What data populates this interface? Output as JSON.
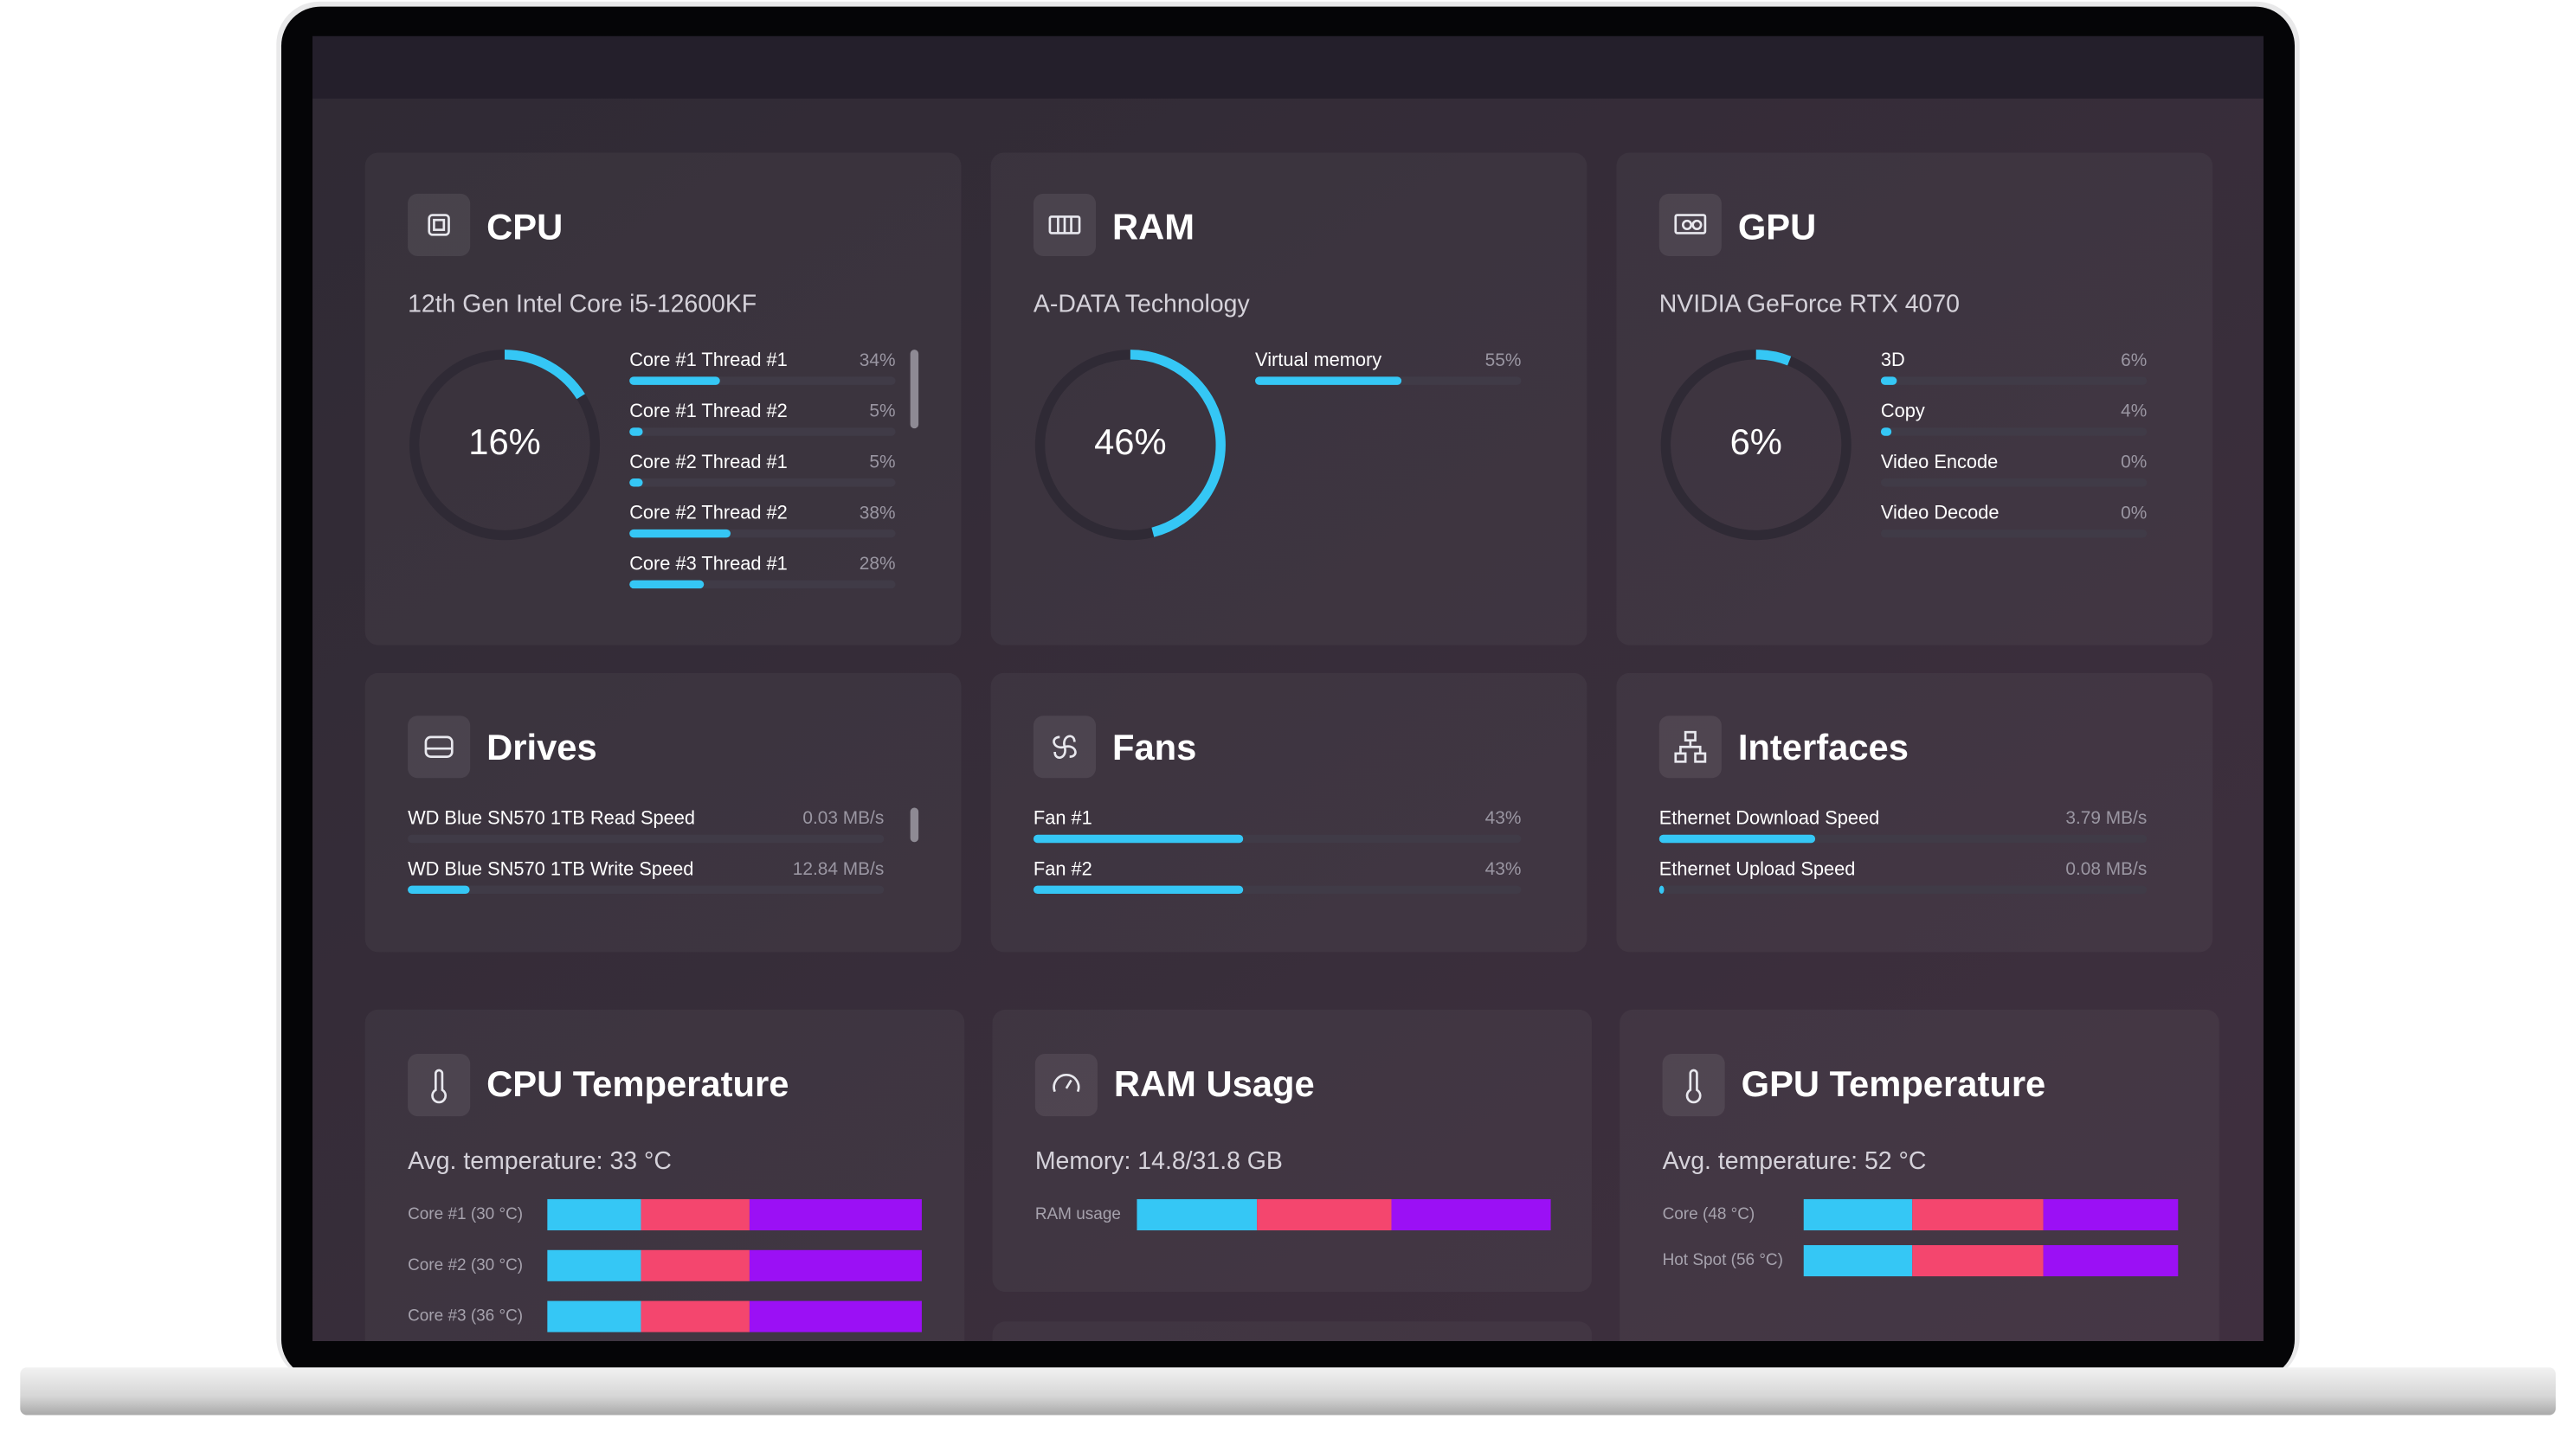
{
  "cpu": {
    "title": "CPU",
    "subtitle": "12th Gen Intel Core i5-12600KF",
    "gauge": {
      "value": 16,
      "label": "16%"
    },
    "items": [
      {
        "name": "Core #1 Thread #1",
        "value": 34,
        "label": "34%"
      },
      {
        "name": "Core #1 Thread #2",
        "value": 5,
        "label": "5%"
      },
      {
        "name": "Core #2 Thread #1",
        "value": 5,
        "label": "5%"
      },
      {
        "name": "Core #2 Thread #2",
        "value": 38,
        "label": "38%"
      },
      {
        "name": "Core #3 Thread #1",
        "value": 28,
        "label": "28%"
      }
    ]
  },
  "ram": {
    "title": "RAM",
    "subtitle": "A-DATA Technology",
    "gauge": {
      "value": 46,
      "label": "46%"
    },
    "items": [
      {
        "name": "Virtual memory",
        "value": 55,
        "label": "55%"
      }
    ]
  },
  "gpu": {
    "title": "GPU",
    "subtitle": "NVIDIA GeForce RTX 4070",
    "gauge": {
      "value": 6,
      "label": "6%"
    },
    "items": [
      {
        "name": "3D",
        "value": 6,
        "label": "6%"
      },
      {
        "name": "Copy",
        "value": 4,
        "label": "4%"
      },
      {
        "name": "Video Encode",
        "value": 0,
        "label": "0%"
      },
      {
        "name": "Video Decode",
        "value": 0,
        "label": "0%"
      }
    ]
  },
  "drives": {
    "title": "Drives",
    "items": [
      {
        "name": "WD Blue SN570 1TB Read Speed",
        "label": "0.03 MB/s"
      },
      {
        "name": "WD Blue SN570 1TB Write Speed",
        "label": "12.84 MB/s"
      }
    ]
  },
  "fans": {
    "title": "Fans",
    "items": [
      {
        "name": "Fan #1",
        "value": 43,
        "label": "43%"
      },
      {
        "name": "Fan #2",
        "value": 43,
        "label": "43%"
      }
    ]
  },
  "interfaces": {
    "title": "Interfaces",
    "items": [
      {
        "name": "Ethernet Download Speed",
        "label": "3.79 MB/s"
      },
      {
        "name": "Ethernet Upload Speed",
        "label": "0.08 MB/s"
      }
    ]
  },
  "cpu_temperature": {
    "title": "CPU Temperature",
    "subtitle": "Avg. temperature: 33 °C",
    "rows": [
      "Core #1 (30 °C)",
      "Core #2 (30 °C)",
      "Core #3 (36 °C)"
    ]
  },
  "ram_usage": {
    "title": "RAM Usage",
    "subtitle": "Memory: 14.8/31.8 GB",
    "rows": [
      "RAM usage"
    ]
  },
  "gpu_temperature": {
    "title": "GPU Temperature",
    "subtitle": "Avg. temperature: 52 °C",
    "rows": [
      "Core (48 °C)",
      "Hot Spot (56 °C)"
    ]
  }
}
